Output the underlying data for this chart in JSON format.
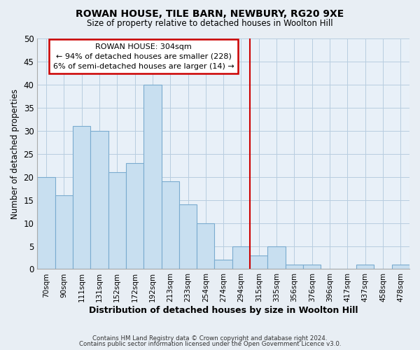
{
  "title": "ROWAN HOUSE, TILE BARN, NEWBURY, RG20 9XE",
  "subtitle": "Size of property relative to detached houses in Woolton Hill",
  "xlabel": "Distribution of detached houses by size in Woolton Hill",
  "ylabel": "Number of detached properties",
  "footnote1": "Contains HM Land Registry data © Crown copyright and database right 2024.",
  "footnote2": "Contains public sector information licensed under the Open Government Licence v3.0.",
  "bin_labels": [
    "70sqm",
    "90sqm",
    "111sqm",
    "131sqm",
    "152sqm",
    "172sqm",
    "192sqm",
    "213sqm",
    "233sqm",
    "254sqm",
    "274sqm",
    "294sqm",
    "315sqm",
    "335sqm",
    "356sqm",
    "376sqm",
    "396sqm",
    "417sqm",
    "437sqm",
    "458sqm",
    "478sqm"
  ],
  "bin_counts": [
    20,
    16,
    31,
    30,
    21,
    23,
    40,
    19,
    14,
    10,
    2,
    5,
    3,
    5,
    1,
    1,
    0,
    0,
    1,
    0,
    1
  ],
  "bar_color": "#c8dff0",
  "bar_edge_color": "#7aabcf",
  "reference_line_x": 11.5,
  "reference_line_color": "#cc0000",
  "annotation_line1": "ROWAN HOUSE: 304sqm",
  "annotation_line2": "← 94% of detached houses are smaller (228)",
  "annotation_line3": "6% of semi-detached houses are larger (14) →",
  "annotation_box_color": "#cc0000",
  "ylim": [
    0,
    50
  ],
  "yticks": [
    0,
    5,
    10,
    15,
    20,
    25,
    30,
    35,
    40,
    45,
    50
  ],
  "background_color": "#e8eef4",
  "plot_background_color": "#e8f0f8",
  "grid_color": "#b8cde0"
}
